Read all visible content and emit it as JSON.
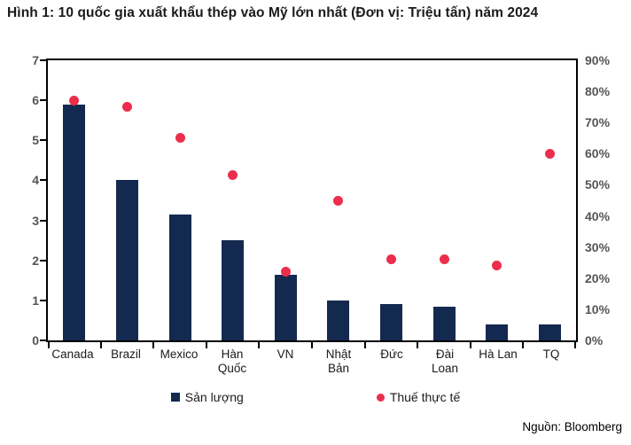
{
  "title": "Hình 1: 10 quốc gia xuất khẩu thép vào Mỹ lớn nhất (Đơn vị: Triệu tấn) năm 2024",
  "source": "Nguồn: Bloomberg",
  "colors": {
    "bar": "#14294F",
    "dot": "#ED2D4C",
    "axis_line": "#000000",
    "tick_label": "#555555",
    "text": "#1a1a1a"
  },
  "chart_data": {
    "type": "bar",
    "subtype": "combo-column-scatter-dual-axis",
    "title": "Hình 1: 10 quốc gia xuất khẩu thép vào Mỹ lớn nhất (Đơn vị: Triệu tấn) năm 2024",
    "categories": [
      "Canada",
      "Brazil",
      "Mexico",
      "Hàn Quốc",
      "VN",
      "Nhật Bản",
      "Đức",
      "Đài Loan",
      "Hà Lan",
      "TQ"
    ],
    "series": [
      {
        "name": "Sản lượng",
        "type": "column",
        "axis": "left",
        "unit": "Triệu tấn",
        "color": "#14294F",
        "values": [
          5.9,
          4.0,
          3.15,
          2.5,
          1.65,
          1.0,
          0.9,
          0.85,
          0.4,
          0.4
        ]
      },
      {
        "name": "Thuế thực tế",
        "type": "scatter",
        "axis": "right",
        "unit": "%",
        "color": "#ED2D4C",
        "values": [
          77,
          75,
          65,
          53,
          22,
          45,
          26,
          26,
          24,
          60
        ]
      }
    ],
    "left_axis": {
      "min": 0,
      "max": 7,
      "step": 1
    },
    "right_axis": {
      "min": 0,
      "max": 90,
      "step": 10,
      "suffix": "%"
    },
    "grid": false,
    "legend_position": "bottom",
    "source": "Nguồn: Bloomberg"
  }
}
